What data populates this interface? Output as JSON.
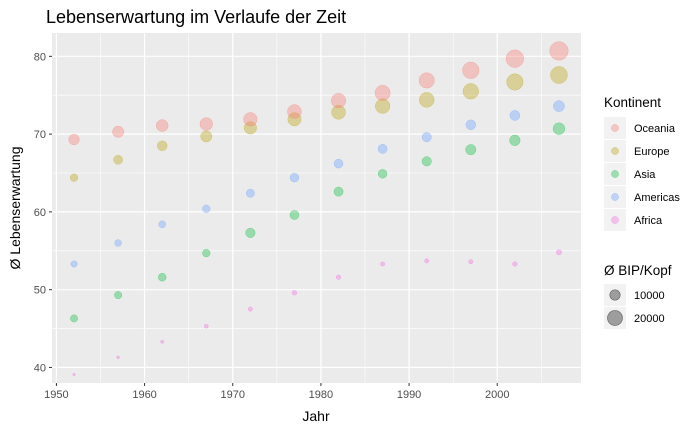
{
  "chart_data": {
    "type": "scatter",
    "title": "Lebenserwartung im Verlaufe der Zeit",
    "xlabel": "Jahr",
    "ylabel": "Ø Lebenserwartung",
    "xlim": [
      1949.5,
      2009.5
    ],
    "ylim": [
      38,
      83
    ],
    "x_ticks": [
      1950,
      1960,
      1970,
      1980,
      1990,
      2000
    ],
    "y_ticks": [
      40,
      50,
      60,
      70,
      80
    ],
    "grid": true,
    "legend_placement": "right",
    "x": [
      1952,
      1957,
      1962,
      1967,
      1972,
      1977,
      1982,
      1987,
      1992,
      1997,
      2002,
      2007
    ],
    "series": [
      {
        "name": "Africa",
        "color": "#f564e3",
        "values": [
          39.1,
          41.3,
          43.3,
          45.3,
          47.5,
          49.6,
          51.6,
          53.3,
          53.7,
          53.6,
          53.3,
          54.8
        ],
        "size": [
          1250,
          1380,
          1600,
          2050,
          2340,
          2590,
          2480,
          2280,
          2280,
          2380,
          2600,
          3090
        ]
      },
      {
        "name": "Americas",
        "color": "#619cff",
        "values": [
          53.3,
          56.0,
          58.4,
          60.4,
          62.4,
          64.4,
          66.2,
          68.1,
          69.6,
          71.2,
          72.4,
          73.6
        ],
        "size": [
          4080,
          4620,
          4900,
          5670,
          6490,
          7350,
          7510,
          7790,
          8040,
          8890,
          9290,
          11000
        ]
      },
      {
        "name": "Asia",
        "color": "#00ba38",
        "values": [
          46.3,
          49.3,
          51.6,
          54.7,
          57.3,
          59.6,
          62.6,
          64.9,
          66.5,
          68.0,
          69.2,
          70.7
        ],
        "size": [
          5200,
          5400,
          6000,
          5670,
          8340,
          7650,
          7890,
          7300,
          8300,
          9900,
          10200,
          12500
        ]
      },
      {
        "name": "Europe",
        "color": "#b79f00",
        "values": [
          64.4,
          66.7,
          68.5,
          69.7,
          70.8,
          71.9,
          72.8,
          73.6,
          74.4,
          75.5,
          76.7,
          77.6
        ],
        "size": [
          5660,
          7700,
          9000,
          11300,
          13900,
          15700,
          17300,
          18800,
          19600,
          21300,
          23700,
          25100
        ]
      },
      {
        "name": "Oceania",
        "color": "#f8766d",
        "values": [
          69.3,
          70.3,
          71.1,
          71.3,
          71.9,
          72.9,
          74.3,
          75.3,
          76.9,
          78.2,
          79.7,
          80.7
        ],
        "size": [
          10300,
          11600,
          12700,
          14500,
          16400,
          17300,
          18600,
          20400,
          20900,
          24000,
          26900,
          29800
        ]
      }
    ],
    "legend_color": {
      "title": "Kontinent",
      "entries": [
        "Oceania",
        "Europe",
        "Asia",
        "Americas",
        "Africa"
      ]
    },
    "legend_size": {
      "title": "Ø BIP/Kopf",
      "entries": [
        {
          "label": "10000",
          "value": 10000
        },
        {
          "label": "20000",
          "value": 20000
        }
      ]
    },
    "background_color": "#ebebeb",
    "grid_color": "#ffffff",
    "point_opacity": 0.35
  }
}
